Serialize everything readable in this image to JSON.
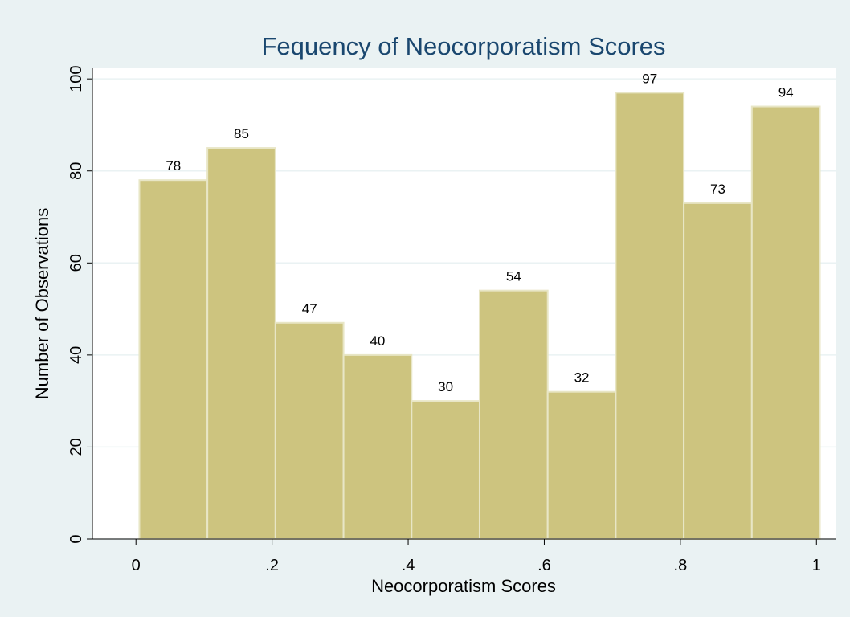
{
  "chart_data": {
    "type": "histogram",
    "title": "Fequency of Neocorporatism Scores",
    "x_label": "Neocorporatism Scores",
    "y_label": "Number of Observations",
    "bins": [
      0.005,
      0.105,
      0.205,
      0.305,
      0.405,
      0.505,
      0.605,
      0.705,
      0.805,
      0.905,
      1.005
    ],
    "values": [
      78,
      85,
      47,
      40,
      30,
      54,
      32,
      97,
      73,
      94
    ],
    "color": "#cdc47f",
    "xlim": [
      -0.064,
      1.028
    ],
    "ylim": [
      0,
      102.3
    ],
    "xticks": [
      0,
      {
        "value": 0.2,
        "label": ".2"
      },
      {
        "value": 0.4,
        "label": ".4"
      },
      {
        "value": 0.6,
        "label": ".6"
      },
      {
        "value": 0.8,
        "label": ".8"
      },
      1
    ],
    "yticks": [
      0,
      20,
      40,
      60,
      80,
      100
    ],
    "grid": true
  }
}
